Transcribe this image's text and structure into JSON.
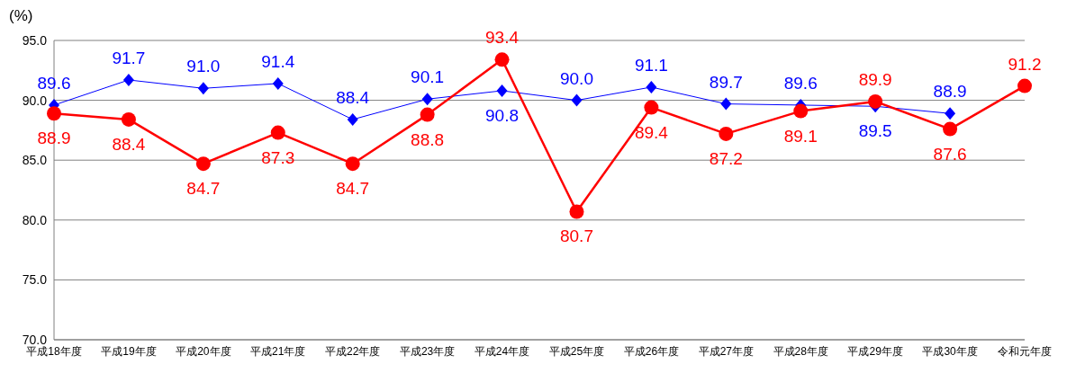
{
  "chart_data": {
    "type": "line",
    "ylabel": "(%)",
    "categories": [
      "平成18年度",
      "平成19年度",
      "平成20年度",
      "平成21年度",
      "平成22年度",
      "平成23年度",
      "平成24年度",
      "平成25年度",
      "平成26年度",
      "平成27年度",
      "平成28年度",
      "平成29年度",
      "平成30年度",
      "令和元年度"
    ],
    "series": [
      {
        "color": "#0000ff",
        "marker": "diamond",
        "values": [
          89.6,
          91.7,
          91.0,
          91.4,
          88.4,
          90.1,
          90.8,
          90.0,
          91.1,
          89.7,
          89.6,
          89.5,
          88.9,
          null
        ],
        "value_labels": [
          "89.6",
          "91.7",
          "91.0",
          "91.4",
          "88.4",
          "90.1",
          "90.8",
          "90.0",
          "91.1",
          "89.7",
          "89.6",
          "89.5",
          "88.9",
          null
        ]
      },
      {
        "color": "#ff0000",
        "marker": "circle",
        "values": [
          88.9,
          88.4,
          84.7,
          87.3,
          84.7,
          88.8,
          93.4,
          80.7,
          89.4,
          87.2,
          89.1,
          89.9,
          87.6,
          91.2
        ],
        "value_labels": [
          "88.9",
          "88.4",
          "84.7",
          "87.3",
          "84.7",
          "88.8",
          "93.4",
          "80.7",
          "89.4",
          "87.2",
          "89.1",
          "89.9",
          "87.6",
          "91.2"
        ]
      }
    ],
    "ylim": [
      70,
      95
    ],
    "yticks": [
      {
        "value": 70,
        "label": "70.0"
      },
      {
        "value": 75,
        "label": "75.0"
      },
      {
        "value": 80,
        "label": "80.0"
      },
      {
        "value": 85,
        "label": "85.0"
      },
      {
        "value": 90,
        "label": "90.0"
      },
      {
        "value": 95,
        "label": "95.0"
      }
    ],
    "grid": "y",
    "line_style": "solid"
  }
}
